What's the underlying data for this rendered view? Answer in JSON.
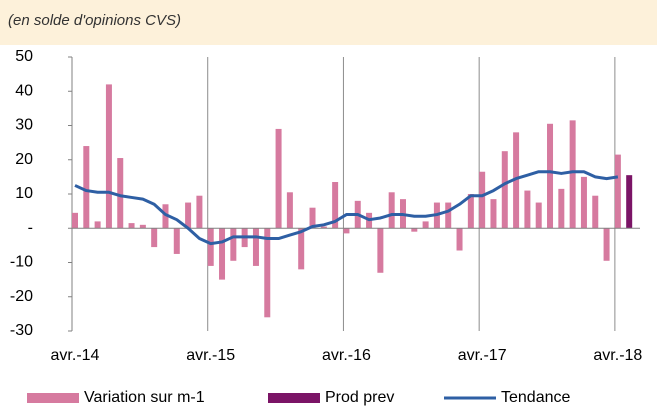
{
  "chart_data": {
    "type": "bar-line",
    "subtitle": "(en solde d'opinions CVS)",
    "categories": [
      "avr.-14",
      null,
      null,
      null,
      null,
      null,
      null,
      null,
      null,
      null,
      null,
      null,
      "avr.-15",
      null,
      null,
      null,
      null,
      null,
      null,
      null,
      null,
      null,
      null,
      null,
      "avr.-16",
      null,
      null,
      null,
      null,
      null,
      null,
      null,
      null,
      null,
      null,
      null,
      "avr.-17",
      null,
      null,
      null,
      null,
      null,
      null,
      null,
      null,
      null,
      null,
      null,
      "avr.-18",
      null
    ],
    "series": [
      {
        "name": "Variation sur m-1",
        "color": "#d67a9f",
        "kind": "bar",
        "values": [
          4.5,
          24,
          2,
          42,
          20.5,
          1.5,
          1,
          -5.5,
          7,
          -7.5,
          7.5,
          9.5,
          -11,
          -15,
          -9.5,
          -5.5,
          -11,
          -26,
          29,
          10.5,
          -12,
          6,
          0.5,
          13.5,
          -1.5,
          8,
          4.5,
          -13,
          10.5,
          8.5,
          -1,
          2,
          7.5,
          7.5,
          -6.5,
          10,
          16.5,
          8.5,
          22.5,
          28,
          11,
          7.5,
          30.5,
          11.5,
          31.5,
          15,
          9.5,
          -9.5,
          21.5,
          null
        ]
      },
      {
        "name": "Prod prev",
        "color": "#7b1466",
        "kind": "bar",
        "values": [
          null,
          null,
          null,
          null,
          null,
          null,
          null,
          null,
          null,
          null,
          null,
          null,
          null,
          null,
          null,
          null,
          null,
          null,
          null,
          null,
          null,
          null,
          null,
          null,
          null,
          null,
          null,
          null,
          null,
          null,
          null,
          null,
          null,
          null,
          null,
          null,
          null,
          null,
          null,
          null,
          null,
          null,
          null,
          null,
          null,
          null,
          null,
          null,
          null,
          15.5
        ]
      },
      {
        "name": "Tendance",
        "color": "#2e5fa4",
        "kind": "line",
        "values": [
          12.5,
          11,
          10.5,
          10.5,
          9.5,
          9,
          8.5,
          7,
          4,
          2.5,
          0,
          -3,
          -4.5,
          -4,
          -2.5,
          -2.5,
          -2.5,
          -3,
          -3,
          -2,
          -1,
          0.5,
          1,
          2,
          4,
          4,
          2.5,
          3,
          4,
          4,
          3.5,
          3.5,
          4,
          5,
          7,
          9.5,
          9.5,
          11,
          13,
          14.5,
          15.5,
          16.5,
          16.5,
          16,
          16.5,
          16.5,
          15,
          14.5,
          15,
          null
        ]
      }
    ],
    "ylim": [
      -30,
      50
    ],
    "yticks": [
      50,
      40,
      30,
      20,
      10,
      {
        "value": 0,
        "label": "-"
      },
      -10,
      -20,
      -30
    ],
    "grid": "x",
    "legend": "bottom"
  }
}
